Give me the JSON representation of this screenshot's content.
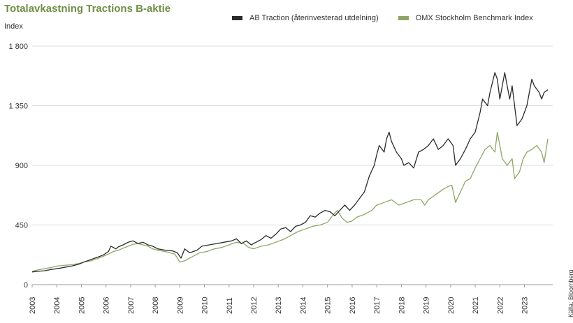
{
  "chart_data": {
    "type": "line",
    "title": "Totalavkastning Tractions B-aktie",
    "ylabel": "Index",
    "xlabel": "",
    "ylim": [
      0,
      1800
    ],
    "xlim": [
      2003,
      2024.15
    ],
    "yticks": [
      0,
      450,
      900,
      1350,
      1800
    ],
    "ytick_labels": [
      "0",
      "450",
      "900",
      "1 350",
      "1 800"
    ],
    "xtick_labels": [
      "2003",
      "2004",
      "2005",
      "2006",
      "2007",
      "2008",
      "2009",
      "2010",
      "2011",
      "2012",
      "2013",
      "2014",
      "2015",
      "2016",
      "2017",
      "2018",
      "2019",
      "2020",
      "2021",
      "2022",
      "2023"
    ],
    "grid": true,
    "legend_position": "top-right",
    "source": "Källa: Bloomberg",
    "series": [
      {
        "name": "AB Traction (återinvesterad utdelning)",
        "color": "#2b2b2b",
        "x": [
          2003,
          2003.2,
          2003.5,
          2003.8,
          2004,
          2004.3,
          2004.6,
          2004.9,
          2005.1,
          2005.4,
          2005.7,
          2005.9,
          2006.1,
          2006.2,
          2006.4,
          2006.5,
          2006.7,
          2006.9,
          2007.1,
          2007.3,
          2007.5,
          2007.7,
          2007.9,
          2008.1,
          2008.4,
          2008.7,
          2008.9,
          2009.05,
          2009.2,
          2009.4,
          2009.7,
          2009.9,
          2010.2,
          2010.5,
          2010.8,
          2011.1,
          2011.3,
          2011.5,
          2011.7,
          2011.9,
          2012.1,
          2012.3,
          2012.5,
          2012.7,
          2012.9,
          2013.1,
          2013.3,
          2013.5,
          2013.7,
          2013.9,
          2014.1,
          2014.3,
          2014.5,
          2014.7,
          2014.9,
          2015.1,
          2015.3,
          2015.5,
          2015.7,
          2015.9,
          2016.1,
          2016.3,
          2016.5,
          2016.7,
          2016.9,
          2017.0,
          2017.1,
          2017.3,
          2017.4,
          2017.5,
          2017.6,
          2017.8,
          2018.0,
          2018.1,
          2018.3,
          2018.5,
          2018.7,
          2018.9,
          2019.1,
          2019.3,
          2019.5,
          2019.7,
          2019.9,
          2020.1,
          2020.2,
          2020.4,
          2020.6,
          2020.8,
          2021.0,
          2021.2,
          2021.3,
          2021.5,
          2021.6,
          2021.8,
          2021.9,
          2022.0,
          2022.2,
          2022.3,
          2022.4,
          2022.5,
          2022.7,
          2022.9,
          2023.1,
          2023.2,
          2023.3,
          2023.4,
          2023.6,
          2023.7,
          2023.8,
          2023.95
        ],
        "values": [
          95,
          100,
          105,
          115,
          120,
          130,
          140,
          155,
          170,
          190,
          210,
          225,
          250,
          290,
          270,
          285,
          300,
          320,
          330,
          310,
          320,
          300,
          290,
          270,
          260,
          255,
          240,
          200,
          270,
          240,
          260,
          290,
          300,
          310,
          320,
          330,
          345,
          310,
          330,
          300,
          320,
          340,
          370,
          350,
          380,
          420,
          430,
          400,
          440,
          450,
          470,
          520,
          510,
          540,
          560,
          550,
          520,
          560,
          600,
          560,
          600,
          650,
          700,
          820,
          900,
          980,
          1050,
          1000,
          1100,
          1150,
          1080,
          1000,
          950,
          900,
          920,
          880,
          1000,
          1020,
          1050,
          1100,
          1020,
          1050,
          1100,
          1050,
          900,
          950,
          1020,
          1100,
          1150,
          1300,
          1400,
          1350,
          1450,
          1600,
          1550,
          1400,
          1600,
          1500,
          1400,
          1500,
          1200,
          1250,
          1350,
          1450,
          1550,
          1500,
          1450,
          1400,
          1450,
          1470
        ]
      },
      {
        "name": "OMX Stockholm Benchmark Index",
        "color": "#8ea664",
        "x": [
          2003,
          2003.2,
          2003.5,
          2003.8,
          2004,
          2004.3,
          2004.6,
          2004.9,
          2005.1,
          2005.4,
          2005.7,
          2005.9,
          2006.1,
          2006.3,
          2006.5,
          2006.7,
          2006.9,
          2007.1,
          2007.3,
          2007.5,
          2007.7,
          2007.9,
          2008.1,
          2008.4,
          2008.6,
          2008.8,
          2009.0,
          2009.2,
          2009.5,
          2009.8,
          2010.1,
          2010.4,
          2010.7,
          2011.0,
          2011.3,
          2011.6,
          2011.8,
          2012.0,
          2012.3,
          2012.6,
          2012.9,
          2013.2,
          2013.5,
          2013.8,
          2014.1,
          2014.4,
          2014.7,
          2015.0,
          2015.2,
          2015.4,
          2015.6,
          2015.8,
          2016.0,
          2016.2,
          2016.5,
          2016.8,
          2017.0,
          2017.3,
          2017.6,
          2017.9,
          2018.2,
          2018.5,
          2018.8,
          2018.95,
          2019.1,
          2019.4,
          2019.7,
          2019.9,
          2020.05,
          2020.2,
          2020.4,
          2020.6,
          2020.8,
          2021.0,
          2021.2,
          2021.4,
          2021.6,
          2021.8,
          2021.9,
          2022.1,
          2022.3,
          2022.5,
          2022.6,
          2022.8,
          2022.95,
          2023.1,
          2023.3,
          2023.5,
          2023.7,
          2023.8,
          2023.95
        ],
        "values": [
          100,
          110,
          120,
          130,
          140,
          145,
          150,
          160,
          170,
          180,
          200,
          215,
          230,
          250,
          260,
          275,
          290,
          305,
          310,
          300,
          290,
          270,
          260,
          250,
          240,
          230,
          170,
          180,
          210,
          240,
          250,
          270,
          280,
          300,
          320,
          310,
          280,
          270,
          290,
          300,
          320,
          340,
          370,
          400,
          420,
          440,
          450,
          470,
          520,
          560,
          500,
          470,
          480,
          510,
          530,
          560,
          600,
          620,
          640,
          600,
          620,
          640,
          640,
          600,
          640,
          680,
          720,
          740,
          750,
          620,
          700,
          780,
          800,
          880,
          950,
          1020,
          1050,
          1000,
          1150,
          950,
          900,
          950,
          800,
          850,
          950,
          1000,
          1020,
          1050,
          1000,
          920,
          1100
        ]
      }
    ]
  }
}
